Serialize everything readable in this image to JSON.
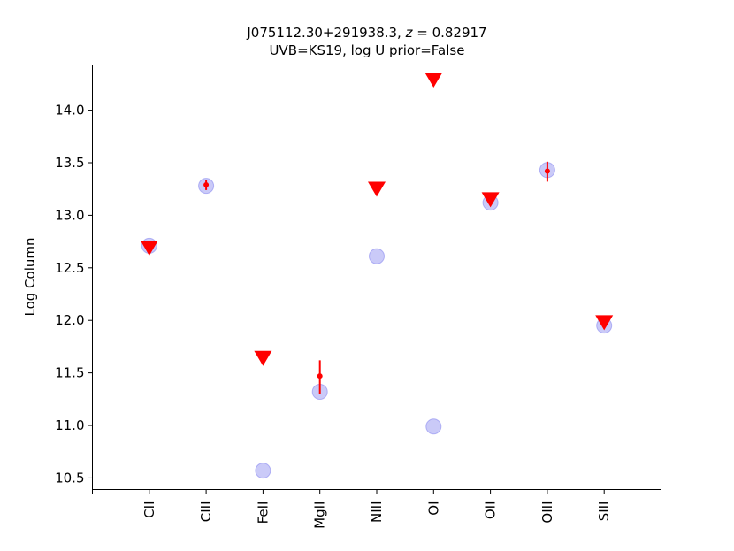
{
  "chart_data": {
    "type": "scatter",
    "title_line1_name": "J075112.30+291938.3, ",
    "title_line1_z_symbol": "z",
    "title_line1_z_value": " = 0.82917",
    "title_line2": "UVB=KS19, log U prior=False",
    "ylabel": "Log Column",
    "xlabel": "",
    "categories": [
      "CII",
      "CIII",
      "FeII",
      "MgII",
      "NIII",
      "OI",
      "OII",
      "OIII",
      "SIII"
    ],
    "xlim": [
      -1,
      9
    ],
    "ylim": [
      10.39,
      14.43
    ],
    "yticks": [
      10.5,
      11.0,
      11.5,
      12.0,
      12.5,
      13.0,
      13.5,
      14.0
    ],
    "ytick_labels": [
      "10.5",
      "11.0",
      "11.5",
      "12.0",
      "12.5",
      "13.0",
      "13.5",
      "14.0"
    ],
    "grid": false,
    "colors": {
      "model": "#8a8af0",
      "observed": "#ff0000"
    },
    "series": [
      {
        "marker": "circle",
        "values": [
          12.71,
          13.28,
          10.57,
          11.32,
          12.61,
          10.99,
          13.12,
          13.43,
          11.95
        ]
      },
      {
        "marker": "errorbar",
        "points": [
          {
            "category": "CIII",
            "y": 13.29,
            "yerr_low": 0.05,
            "yerr_high": 0.05
          },
          {
            "category": "MgII",
            "y": 11.47,
            "yerr_low": 0.17,
            "yerr_high": 0.15
          },
          {
            "category": "OIII",
            "y": 13.42,
            "yerr_low": 0.1,
            "yerr_high": 0.09
          }
        ]
      },
      {
        "marker": "triangle-down",
        "points": [
          {
            "category": "CII",
            "y": 12.7
          },
          {
            "category": "FeII",
            "y": 11.65
          },
          {
            "category": "NIII",
            "y": 13.26
          },
          {
            "category": "OI",
            "y": 14.3
          },
          {
            "category": "OII",
            "y": 13.16
          },
          {
            "category": "SIII",
            "y": 11.99
          }
        ]
      }
    ]
  }
}
